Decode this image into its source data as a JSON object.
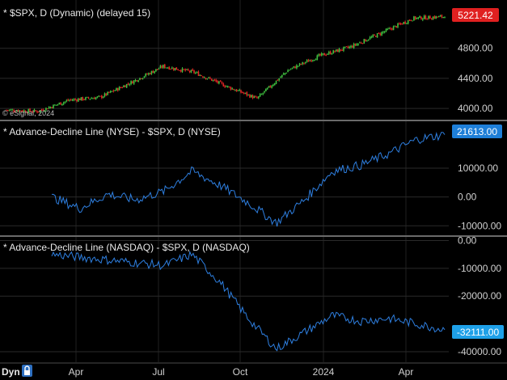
{
  "watermark": "© eSignal, 2024",
  "panels": [
    {
      "id": "price",
      "title": "* $SPX, D (Dynamic) (delayed 15)",
      "last_value": "5221.42",
      "last_badge_color": "#e02020",
      "ticks": [
        {
          "label": "4800.00",
          "value": 4800
        },
        {
          "label": "4400.00",
          "value": 4400
        },
        {
          "label": "4000.00",
          "value": 4000
        }
      ]
    },
    {
      "id": "ad_nyse",
      "title": "* Advance-Decline Line (NYSE) - $SPX, D (NYSE)",
      "last_value": "21613.00",
      "last_badge_color": "#1e7fd8",
      "ticks": [
        {
          "label": "10000.00",
          "value": 10000
        },
        {
          "label": "0.00",
          "value": 0
        },
        {
          "label": "-10000.00",
          "value": -10000
        }
      ]
    },
    {
      "id": "ad_nasdaq",
      "title": "* Advance-Decline Line (NASDAQ) - $SPX, D (NASDAQ)",
      "last_value": "-32111.00",
      "last_badge_color": "#1ea0e8",
      "ticks": [
        {
          "label": "0.00",
          "value": 0
        },
        {
          "label": "-10000.00",
          "value": -10000
        },
        {
          "label": "-20000.00",
          "value": -20000
        },
        {
          "label": "-40000.00",
          "value": -40000
        }
      ]
    }
  ],
  "time_axis": {
    "mode_label": "Dyn",
    "labels": [
      "Apr",
      "Jul",
      "Oct",
      "2024",
      "Apr"
    ]
  },
  "colors": {
    "up": "#3fbf3f",
    "down": "#e02424",
    "line": "#2e7fe0",
    "grid": "#2a2a2a",
    "separator": "#6a6a6a"
  },
  "chart_data": [
    {
      "type": "candlestick",
      "title": "* $SPX, D (Dynamic) (delayed 15)",
      "x": [
        "2023-02",
        "2023-03",
        "2023-04",
        "2023-05",
        "2023-06",
        "2023-07",
        "2023-08",
        "2023-09",
        "2023-10",
        "2023-11",
        "2023-12",
        "2024-01",
        "2024-02",
        "2024-03",
        "2024-04"
      ],
      "close": [
        3980,
        3960,
        4110,
        4150,
        4350,
        4560,
        4480,
        4300,
        4130,
        4510,
        4700,
        4820,
        5010,
        5200,
        5221.42
      ],
      "last": 5221.42
    },
    {
      "type": "line",
      "title": "* Advance-Decline Line (NYSE) - $SPX, D (NYSE)",
      "x": [
        "2023-02",
        "2023-03",
        "2023-04",
        "2023-05",
        "2023-06",
        "2023-07",
        "2023-08",
        "2023-09",
        "2023-10",
        "2023-11",
        "2023-12",
        "2024-01",
        "2024-02",
        "2024-03",
        "2024-04"
      ],
      "values": [
        0,
        -4000,
        1000,
        -1000,
        2000,
        9000,
        4000,
        -2000,
        -9000,
        -1000,
        9000,
        11000,
        15000,
        20000,
        21613
      ],
      "last": 21613
    },
    {
      "type": "line",
      "title": "* Advance-Decline Line (NASDAQ) - $SPX, D (NASDAQ)",
      "x": [
        "2023-02",
        "2023-03",
        "2023-04",
        "2023-05",
        "2023-06",
        "2023-07",
        "2023-08",
        "2023-09",
        "2023-10",
        "2023-11",
        "2023-12",
        "2024-01",
        "2024-02",
        "2024-03",
        "2024-04"
      ],
      "values": [
        -5000,
        -6000,
        -7000,
        -8000,
        -9000,
        -5000,
        -15000,
        -28000,
        -39000,
        -33000,
        -27000,
        -29000,
        -28000,
        -30000,
        -32111
      ],
      "last": -32111
    }
  ]
}
